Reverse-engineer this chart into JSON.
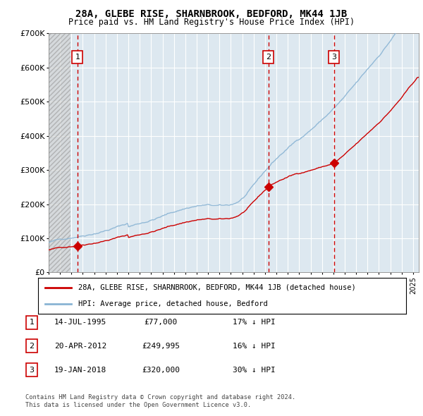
{
  "title": "28A, GLEBE RISE, SHARNBROOK, BEDFORD, MK44 1JB",
  "subtitle": "Price paid vs. HM Land Registry's House Price Index (HPI)",
  "hpi_label": "HPI: Average price, detached house, Bedford",
  "property_label": "28A, GLEBE RISE, SHARNBROOK, BEDFORD, MK44 1JB (detached house)",
  "copyright": "Contains HM Land Registry data © Crown copyright and database right 2024.\nThis data is licensed under the Open Government Licence v3.0.",
  "hpi_color": "#8ab4d4",
  "property_color": "#cc0000",
  "dashed_line_color": "#cc0000",
  "sales": [
    {
      "date_x": 1995.53,
      "price": 77000,
      "label": "1"
    },
    {
      "date_x": 2012.3,
      "price": 249995,
      "label": "2"
    },
    {
      "date_x": 2018.05,
      "price": 320000,
      "label": "3"
    }
  ],
  "sale_annotations": [
    {
      "label": "1",
      "date": "14-JUL-1995",
      "price": "£77,000",
      "hpi_note": "17% ↓ HPI"
    },
    {
      "label": "2",
      "date": "20-APR-2012",
      "price": "£249,995",
      "hpi_note": "16% ↓ HPI"
    },
    {
      "label": "3",
      "date": "19-JAN-2018",
      "price": "£320,000",
      "hpi_note": "30% ↓ HPI"
    }
  ],
  "ylim": [
    0,
    700000
  ],
  "yticks": [
    0,
    100000,
    200000,
    300000,
    400000,
    500000,
    600000,
    700000
  ],
  "xlim": [
    1993.0,
    2025.5
  ],
  "plot_bg_color": "#dde8f0"
}
